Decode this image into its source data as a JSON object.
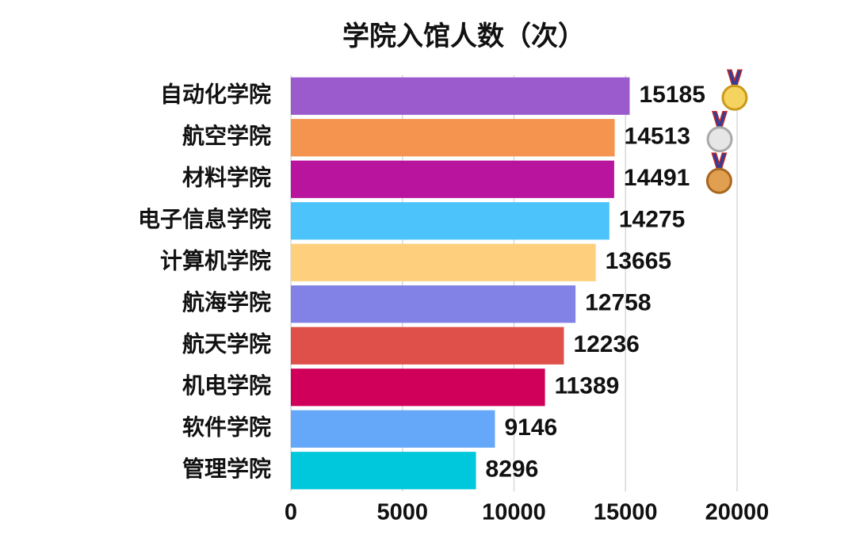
{
  "chart_data": {
    "type": "bar",
    "orientation": "horizontal",
    "title": "学院入馆人数（次）",
    "categories": [
      "自动化学院",
      "航空学院",
      "材料学院",
      "电子信息学院",
      "计算机学院",
      "航海学院",
      "航天学院",
      "机电学院",
      "软件学院",
      "管理学院"
    ],
    "values": [
      15185,
      14513,
      14491,
      14275,
      13665,
      12758,
      12236,
      11389,
      9146,
      8296
    ],
    "colors": [
      "#9b5bcd",
      "#f5944f",
      "#b9149e",
      "#4cc4fb",
      "#fecf7c",
      "#8181e6",
      "#de5049",
      "#d0005a",
      "#65a7f8",
      "#00c8dc"
    ],
    "xlim": [
      0,
      20000
    ],
    "xticks": [
      0,
      5000,
      10000,
      15000,
      20000
    ],
    "grid": true
  }
}
